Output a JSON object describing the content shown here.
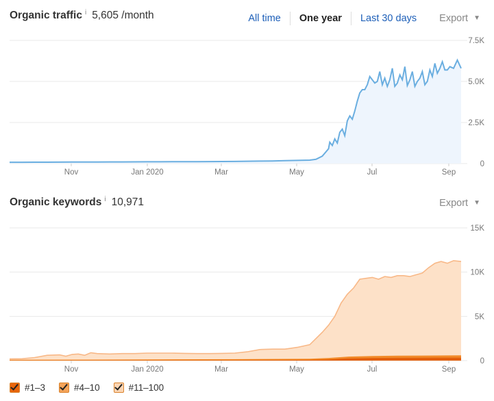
{
  "traffic": {
    "title": "Organic traffic",
    "info": "i",
    "value": "5,605 /month",
    "ranges": [
      "All time",
      "One year",
      "Last 30 days"
    ],
    "active_range": "One year",
    "export_label": "Export"
  },
  "keywords": {
    "title": "Organic keywords",
    "info": "i",
    "value": "10,971",
    "export_label": "Export"
  },
  "legend": [
    {
      "label": "#1–3",
      "color": "#e8650c"
    },
    {
      "label": "#4–10",
      "color": "#f4a45a"
    },
    {
      "label": "#11–100",
      "color": "#fbd5b3"
    }
  ],
  "colors": {
    "traffic_line": "#6aaee0",
    "traffic_fill": "#eef5fd",
    "kw_top": "#f8b887",
    "kw_fill": "#fde1c8",
    "kw_mid": "#f28b2a",
    "kw_low": "#e25f0b"
  },
  "chart_data": [
    {
      "type": "area",
      "title": "Organic traffic",
      "x_ticks": [
        "Nov",
        "Jan 2020",
        "Mar",
        "May",
        "Jul",
        "Sep"
      ],
      "y_ticks": [
        "0",
        "2.5K",
        "5.0K",
        "7.5K"
      ],
      "ylim": [
        0,
        7500
      ],
      "grid": true,
      "series": [
        {
          "x": [
            0,
            10,
            20,
            30,
            40,
            50,
            60,
            70,
            80,
            90,
            100,
            110,
            120,
            130,
            140,
            150,
            160,
            170,
            180,
            190,
            200,
            210,
            220,
            230,
            240,
            245,
            250,
            255,
            256,
            258,
            260,
            262,
            264,
            266,
            268,
            270,
            272,
            274,
            276,
            278,
            280,
            282,
            284,
            286,
            288,
            290,
            292,
            294,
            296,
            298,
            300,
            302,
            304,
            306,
            308,
            310,
            312,
            314,
            316,
            318,
            320,
            322,
            324,
            326,
            328,
            330,
            332,
            334,
            336,
            338,
            340,
            342,
            344,
            346,
            348,
            350,
            352,
            355,
            358,
            361
          ],
          "values": [
            80,
            80,
            82,
            85,
            88,
            90,
            92,
            95,
            98,
            100,
            105,
            108,
            110,
            112,
            115,
            118,
            120,
            125,
            130,
            140,
            150,
            160,
            175,
            190,
            210,
            260,
            450,
            900,
            1300,
            1100,
            1500,
            1250,
            1900,
            2100,
            1700,
            2600,
            2900,
            2700,
            3200,
            3800,
            4300,
            4500,
            4500,
            4800,
            5300,
            5100,
            4900,
            5000,
            5600,
            4800,
            5200,
            4700,
            5100,
            5800,
            4700,
            4900,
            5400,
            5100,
            5900,
            4750,
            5100,
            5600,
            4700,
            5000,
            5200,
            5600,
            4800,
            5000,
            5700,
            5300,
            6100,
            5500,
            5800,
            6200,
            5700,
            5700,
            5900,
            5800,
            6300,
            5800
          ]
        }
      ]
    },
    {
      "type": "area",
      "title": "Organic keywords",
      "x_ticks": [
        "Nov",
        "Jan 2020",
        "Mar",
        "May",
        "Jul",
        "Sep"
      ],
      "y_ticks": [
        "0",
        "5K",
        "10K",
        "15K"
      ],
      "ylim": [
        0,
        15000
      ],
      "grid": true,
      "series": [
        {
          "name": "#1–3",
          "x": [
            0,
            60,
            120,
            180,
            240,
            255,
            270,
            290,
            310,
            330,
            350,
            361
          ],
          "values": [
            20,
            30,
            40,
            50,
            80,
            120,
            250,
            300,
            320,
            330,
            340,
            340
          ]
        },
        {
          "name": "#4–10",
          "x": [
            0,
            60,
            120,
            180,
            240,
            255,
            270,
            290,
            310,
            330,
            350,
            361
          ],
          "values": [
            90,
            110,
            140,
            160,
            220,
            300,
            450,
            520,
            560,
            570,
            590,
            600
          ]
        },
        {
          "name": "#11–100",
          "x": [
            0,
            10,
            20,
            30,
            40,
            45,
            50,
            55,
            60,
            65,
            70,
            80,
            90,
            100,
            110,
            120,
            130,
            140,
            150,
            160,
            170,
            180,
            190,
            200,
            210,
            220,
            230,
            240,
            245,
            250,
            255,
            260,
            265,
            270,
            275,
            280,
            285,
            290,
            295,
            300,
            305,
            310,
            315,
            320,
            325,
            330,
            335,
            340,
            345,
            350,
            355,
            361
          ],
          "values": [
            200,
            220,
            350,
            600,
            650,
            500,
            700,
            750,
            600,
            900,
            800,
            750,
            800,
            800,
            850,
            850,
            850,
            820,
            800,
            800,
            820,
            850,
            1000,
            1250,
            1300,
            1300,
            1500,
            1800,
            2500,
            3200,
            4000,
            5000,
            6500,
            7500,
            8200,
            9200,
            9300,
            9400,
            9200,
            9500,
            9400,
            9600,
            9600,
            9500,
            9700,
            9900,
            10500,
            11000,
            11200,
            11000,
            11300,
            11200
          ]
        }
      ]
    }
  ]
}
